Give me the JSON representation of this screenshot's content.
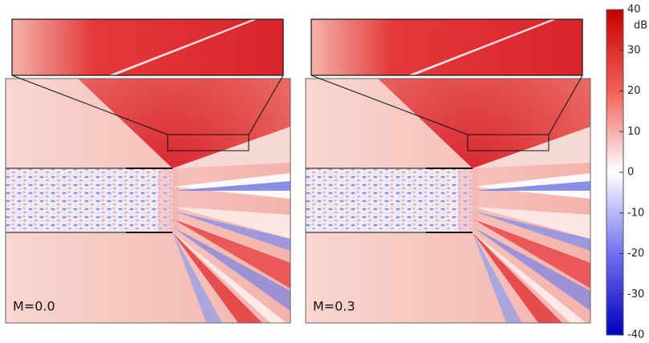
{
  "panels": [
    {
      "label": "M=0.0"
    },
    {
      "label": "M=0.3"
    }
  ],
  "colorbar": {
    "unit": "dB",
    "lim": [
      -40,
      40
    ],
    "ticks": [
      40,
      30,
      20,
      10,
      0,
      -10,
      -20,
      -30,
      -40
    ]
  }
}
